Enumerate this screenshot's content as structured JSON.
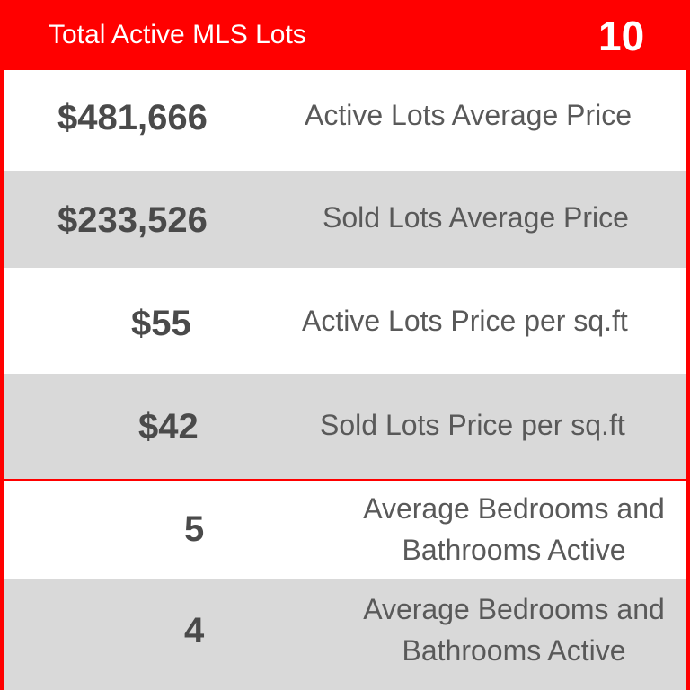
{
  "header": {
    "title": "Total Active MLS Lots",
    "count": "10"
  },
  "rows": [
    {
      "value": "$481,666",
      "label": "Active Lots Average Price"
    },
    {
      "value": "$233,526",
      "label": "Sold Lots Average Price"
    },
    {
      "value": "$55",
      "label": "Active Lots Price per sq.ft"
    },
    {
      "value": "$42",
      "label": "Sold Lots Price per sq.ft"
    },
    {
      "value": "5",
      "label_line1": "Average Bedrooms and",
      "label_line2": "Bathrooms Active"
    },
    {
      "value": "4",
      "label_line1": "Average Bedrooms and",
      "label_line2": "Bathrooms Active"
    }
  ],
  "colors": {
    "accent": "#ff0000",
    "row_alt": "#d9d9d9",
    "value_text": "#4a4a4a",
    "label_text": "#595959"
  }
}
